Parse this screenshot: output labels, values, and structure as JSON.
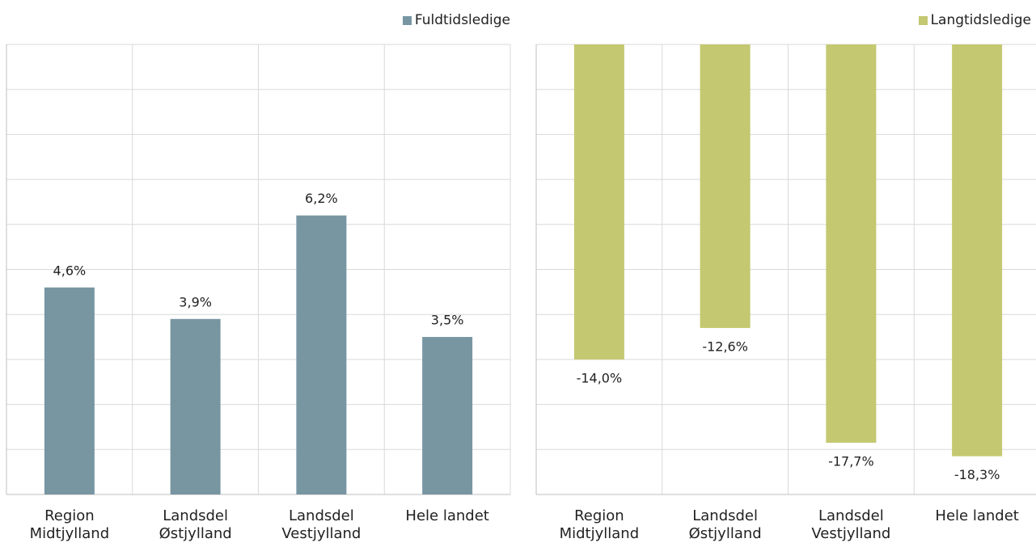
{
  "chart_data": [
    {
      "type": "bar",
      "categories": [
        "Region Midtjylland",
        "Landsdel Østjylland",
        "Landsdel Vestjylland",
        "Hele landet"
      ],
      "series": [
        {
          "name": "Fuldtidsledige",
          "color": "#7896a2",
          "values": [
            4.6,
            3.9,
            6.2,
            3.5
          ],
          "value_labels": [
            "4,6%",
            "3,9%",
            "6,2%",
            "3,5%"
          ]
        }
      ],
      "ylim": [
        0,
        10
      ],
      "yticks": [
        0,
        1,
        2,
        3,
        4,
        5,
        6,
        7,
        8,
        9,
        10
      ],
      "grid": true,
      "legend": "top-right"
    },
    {
      "type": "bar",
      "categories": [
        "Region Midtjylland",
        "Landsdel Østjylland",
        "Landsdel Vestjylland",
        "Hele landet"
      ],
      "series": [
        {
          "name": "Langtidsledige",
          "color": "#c4c870",
          "values": [
            -14.0,
            -12.6,
            -17.7,
            -18.3
          ],
          "value_labels": [
            "-14,0%",
            "-12,6%",
            "-17,7%",
            "-18,3%"
          ]
        }
      ],
      "ylim": [
        -20,
        0
      ],
      "yticks": [
        -20,
        -18,
        -16,
        -14,
        -12,
        -10,
        -8,
        -6,
        -4,
        -2,
        0
      ],
      "grid": true,
      "legend": "top-right"
    }
  ]
}
